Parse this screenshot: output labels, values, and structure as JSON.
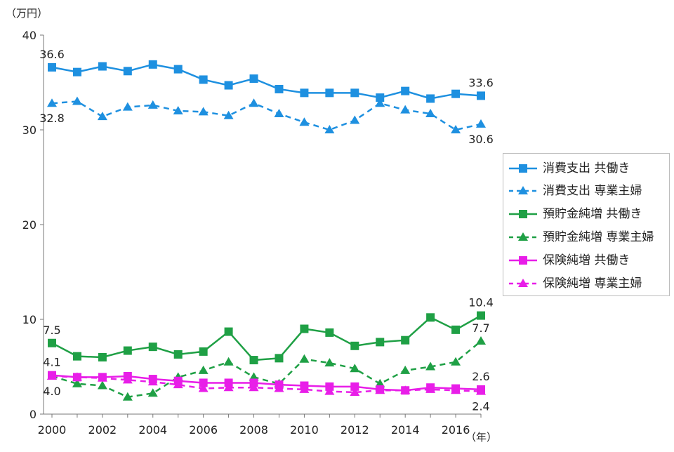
{
  "chart_data": {
    "type": "line",
    "y_unit_label": "（万円）",
    "x_unit_label": "（年）",
    "ylim": [
      0,
      40
    ],
    "yticks": [
      0,
      10,
      20,
      30,
      40
    ],
    "xlim": [
      2000,
      2017
    ],
    "xticks": [
      2000,
      2002,
      2004,
      2006,
      2008,
      2010,
      2012,
      2014,
      2016
    ],
    "grid": false,
    "legend_position": "right",
    "x": [
      2000,
      2001,
      2002,
      2003,
      2004,
      2005,
      2006,
      2007,
      2008,
      2009,
      2010,
      2011,
      2012,
      2013,
      2014,
      2015,
      2016,
      2017
    ],
    "series": [
      {
        "name": "消費支出 共働き",
        "color": "#1e90e0",
        "marker": "square",
        "dashed": false,
        "values": [
          36.6,
          36.1,
          36.7,
          36.2,
          36.9,
          36.4,
          35.3,
          34.7,
          35.4,
          34.3,
          33.9,
          33.9,
          33.9,
          33.4,
          34.1,
          33.3,
          33.8,
          33.6
        ]
      },
      {
        "name": "消費支出 専業主婦",
        "color": "#1e90e0",
        "marker": "triangle",
        "dashed": true,
        "values": [
          32.8,
          33.0,
          31.4,
          32.4,
          32.6,
          32.0,
          31.9,
          31.5,
          32.8,
          31.7,
          30.8,
          30.0,
          31.0,
          32.8,
          32.1,
          31.7,
          30.0,
          30.6
        ]
      },
      {
        "name": "預貯金純増 共働き",
        "color": "#1fa045",
        "marker": "square",
        "dashed": false,
        "values": [
          7.5,
          6.1,
          6.0,
          6.7,
          7.1,
          6.3,
          6.6,
          8.7,
          5.7,
          5.9,
          9.0,
          8.6,
          7.2,
          7.6,
          7.8,
          10.2,
          8.9,
          10.4
        ]
      },
      {
        "name": "預貯金純増 専業主婦",
        "color": "#1fa045",
        "marker": "triangle",
        "dashed": true,
        "values": [
          4.0,
          3.2,
          3.0,
          1.8,
          2.2,
          3.9,
          4.6,
          5.5,
          3.9,
          3.2,
          5.8,
          5.4,
          4.8,
          3.2,
          4.6,
          5.0,
          5.5,
          7.7
        ]
      },
      {
        "name": "保険純増 共働き",
        "color": "#e81ee8",
        "marker": "square",
        "dashed": false,
        "values": [
          4.1,
          3.9,
          3.9,
          4.0,
          3.7,
          3.5,
          3.3,
          3.3,
          3.3,
          3.1,
          3.0,
          2.9,
          2.9,
          2.6,
          2.5,
          2.8,
          2.7,
          2.6
        ]
      },
      {
        "name": "保険純増 専業主婦",
        "color": "#e81ee8",
        "marker": "triangle",
        "dashed": true,
        "values": [
          4.0,
          3.9,
          3.8,
          3.6,
          3.4,
          3.1,
          2.7,
          2.8,
          2.8,
          2.7,
          2.6,
          2.4,
          2.3,
          2.5,
          2.5,
          2.6,
          2.5,
          2.4
        ]
      }
    ],
    "annotations": [
      {
        "text": "36.6",
        "x": 2000,
        "series": 0,
        "pos": "above"
      },
      {
        "text": "32.8",
        "x": 2000,
        "series": 1,
        "pos": "below"
      },
      {
        "text": "33.6",
        "x": 2017,
        "series": 0,
        "pos": "above"
      },
      {
        "text": "30.6",
        "x": 2017,
        "series": 1,
        "pos": "below"
      },
      {
        "text": "7.5",
        "x": 2000,
        "series": 2,
        "pos": "above"
      },
      {
        "text": "4.1",
        "x": 2000,
        "series": 4,
        "pos": "above"
      },
      {
        "text": "4.0",
        "x": 2000,
        "series": 5,
        "pos": "below"
      },
      {
        "text": "10.4",
        "x": 2017,
        "series": 2,
        "pos": "above"
      },
      {
        "text": "7.7",
        "x": 2017,
        "series": 3,
        "pos": "above"
      },
      {
        "text": "2.6",
        "x": 2017,
        "series": 4,
        "pos": "above"
      },
      {
        "text": "2.4",
        "x": 2017,
        "series": 5,
        "pos": "below"
      }
    ]
  }
}
